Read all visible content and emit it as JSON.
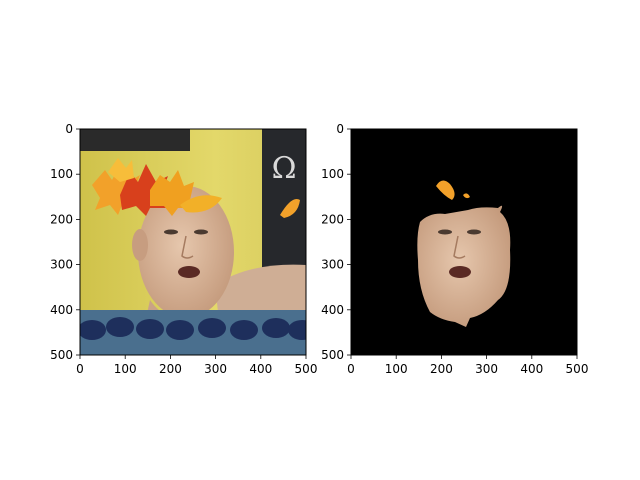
{
  "figure": {
    "background": "#ffffff"
  },
  "chart_data": [
    {
      "type": "image",
      "title": "",
      "xlabel": "",
      "ylabel": "",
      "xlim": [
        0,
        500
      ],
      "ylim": [
        500,
        0
      ],
      "xticks": [
        "0",
        "100",
        "200",
        "300",
        "400",
        "500"
      ],
      "yticks": [
        "0",
        "100",
        "200",
        "300",
        "400",
        "500"
      ],
      "grid": false,
      "legend": "none",
      "content": "photo-of-swimmer-with-autumn-leaves"
    },
    {
      "type": "image",
      "title": "",
      "xlabel": "",
      "ylabel": "",
      "xlim": [
        0,
        500
      ],
      "ylim": [
        500,
        0
      ],
      "xticks": [
        "0",
        "100",
        "200",
        "300",
        "400",
        "500"
      ],
      "yticks": [
        "0",
        "100",
        "200",
        "300",
        "400",
        "500"
      ],
      "grid": false,
      "legend": "none",
      "content": "segmented-face-on-black-background"
    }
  ],
  "colors": {
    "panel1_background_yellow": "#d8cc5a",
    "panel1_pool_blue": "#203a6e",
    "panel1_dark_banner": "#26282c",
    "panel2_background": "#000000",
    "skin": "#d9b89c",
    "leaf_orange": "#f2a12a",
    "leaf_red": "#d8401c"
  }
}
